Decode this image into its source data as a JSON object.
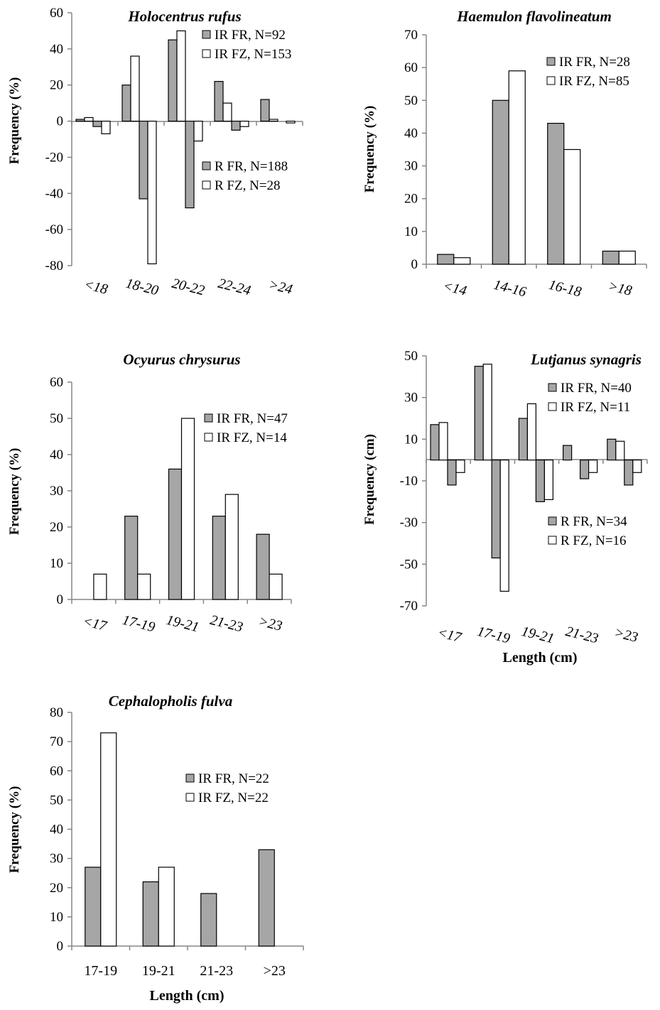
{
  "chart_data": [
    {
      "id": "holocentrus",
      "type": "bar",
      "title": "Holocentrus rufus",
      "ylabel": "Frequency (%)",
      "xlabel": "",
      "ylim": [
        -80,
        60
      ],
      "yticks": [
        60,
        40,
        20,
        0,
        -20,
        -40,
        -60,
        -80
      ],
      "categories": [
        "<18",
        "18-20",
        "20-22",
        "22-24",
        ">24"
      ],
      "upper_series": [
        {
          "name": "IR FR, N=92",
          "color": "#a6a6a6",
          "values": [
            1,
            20,
            45,
            22,
            12
          ]
        },
        {
          "name": "IR FZ, N=153",
          "color": "#ffffff",
          "values": [
            2,
            36,
            50,
            10,
            1
          ]
        }
      ],
      "lower_series": [
        {
          "name": "R FR, N=188",
          "color": "#a6a6a6",
          "values": [
            -3,
            -43,
            -48,
            -5,
            0
          ]
        },
        {
          "name": "R FZ, N=28",
          "color": "#ffffff",
          "values": [
            -7,
            -79,
            -11,
            -3,
            -1
          ]
        }
      ]
    },
    {
      "id": "haemulon",
      "type": "bar",
      "title": "Haemulon flavolineatum",
      "ylabel": "Frequency (%)",
      "xlabel": "",
      "ylim": [
        0,
        70
      ],
      "yticks": [
        70,
        60,
        50,
        40,
        30,
        20,
        10,
        0
      ],
      "categories": [
        "<14",
        "14-16",
        "16-18",
        ">18"
      ],
      "series": [
        {
          "name": "IR FR, N=28",
          "color": "#a6a6a6",
          "values": [
            3,
            50,
            43,
            4
          ]
        },
        {
          "name": "IR FZ, N=85",
          "color": "#ffffff",
          "values": [
            2,
            59,
            35,
            4
          ]
        }
      ]
    },
    {
      "id": "ocyurus",
      "type": "bar",
      "title": "Ocyurus chrysurus",
      "ylabel": "Frequency (%)",
      "xlabel": "",
      "ylim": [
        0,
        60
      ],
      "yticks": [
        60,
        50,
        40,
        30,
        20,
        10,
        0
      ],
      "categories": [
        "<17",
        "17-19",
        "19-21",
        "21-23",
        ">23"
      ],
      "series": [
        {
          "name": "IR FR, N=47",
          "color": "#a6a6a6",
          "values": [
            0,
            23,
            36,
            23,
            18
          ]
        },
        {
          "name": "IR FZ, N=14",
          "color": "#ffffff",
          "values": [
            7,
            7,
            50,
            29,
            7
          ]
        }
      ]
    },
    {
      "id": "lutjanus",
      "type": "bar",
      "title": "Lutjanus synagris",
      "ylabel": "Frequency (cm)",
      "xlabel": "Length (cm)",
      "ylim": [
        -70,
        50
      ],
      "yticks": [
        50,
        30,
        10,
        -10,
        -30,
        -50,
        -70
      ],
      "categories": [
        "<17",
        "17-19",
        "19-21",
        "21-23",
        ">23"
      ],
      "upper_series": [
        {
          "name": "IR FR, N=40",
          "color": "#a6a6a6",
          "values": [
            17,
            45,
            20,
            7,
            10
          ]
        },
        {
          "name": "IR FZ, N=11",
          "color": "#ffffff",
          "values": [
            18,
            46,
            27,
            0,
            9
          ]
        }
      ],
      "lower_series": [
        {
          "name": "R FR, N=34",
          "color": "#a6a6a6",
          "values": [
            -12,
            -47,
            -20,
            -9,
            -12
          ]
        },
        {
          "name": "R FZ, N=16",
          "color": "#ffffff",
          "values": [
            -6,
            -63,
            -19,
            -6,
            -6
          ]
        }
      ]
    },
    {
      "id": "cephalopholis",
      "type": "bar",
      "title": "Cephalopholis fulva",
      "ylabel": "Frequency (%)",
      "xlabel": "Length (cm)",
      "ylim": [
        0,
        80
      ],
      "yticks": [
        80,
        70,
        60,
        50,
        40,
        30,
        20,
        10,
        0
      ],
      "categories": [
        "17-19",
        "19-21",
        "21-23",
        ">23"
      ],
      "series": [
        {
          "name": "IR FR, N=22",
          "color": "#a6a6a6",
          "values": [
            27,
            22,
            18,
            33
          ]
        },
        {
          "name": "IR FZ, N=22",
          "color": "#ffffff",
          "values": [
            73,
            27,
            0,
            0
          ]
        }
      ]
    }
  ]
}
